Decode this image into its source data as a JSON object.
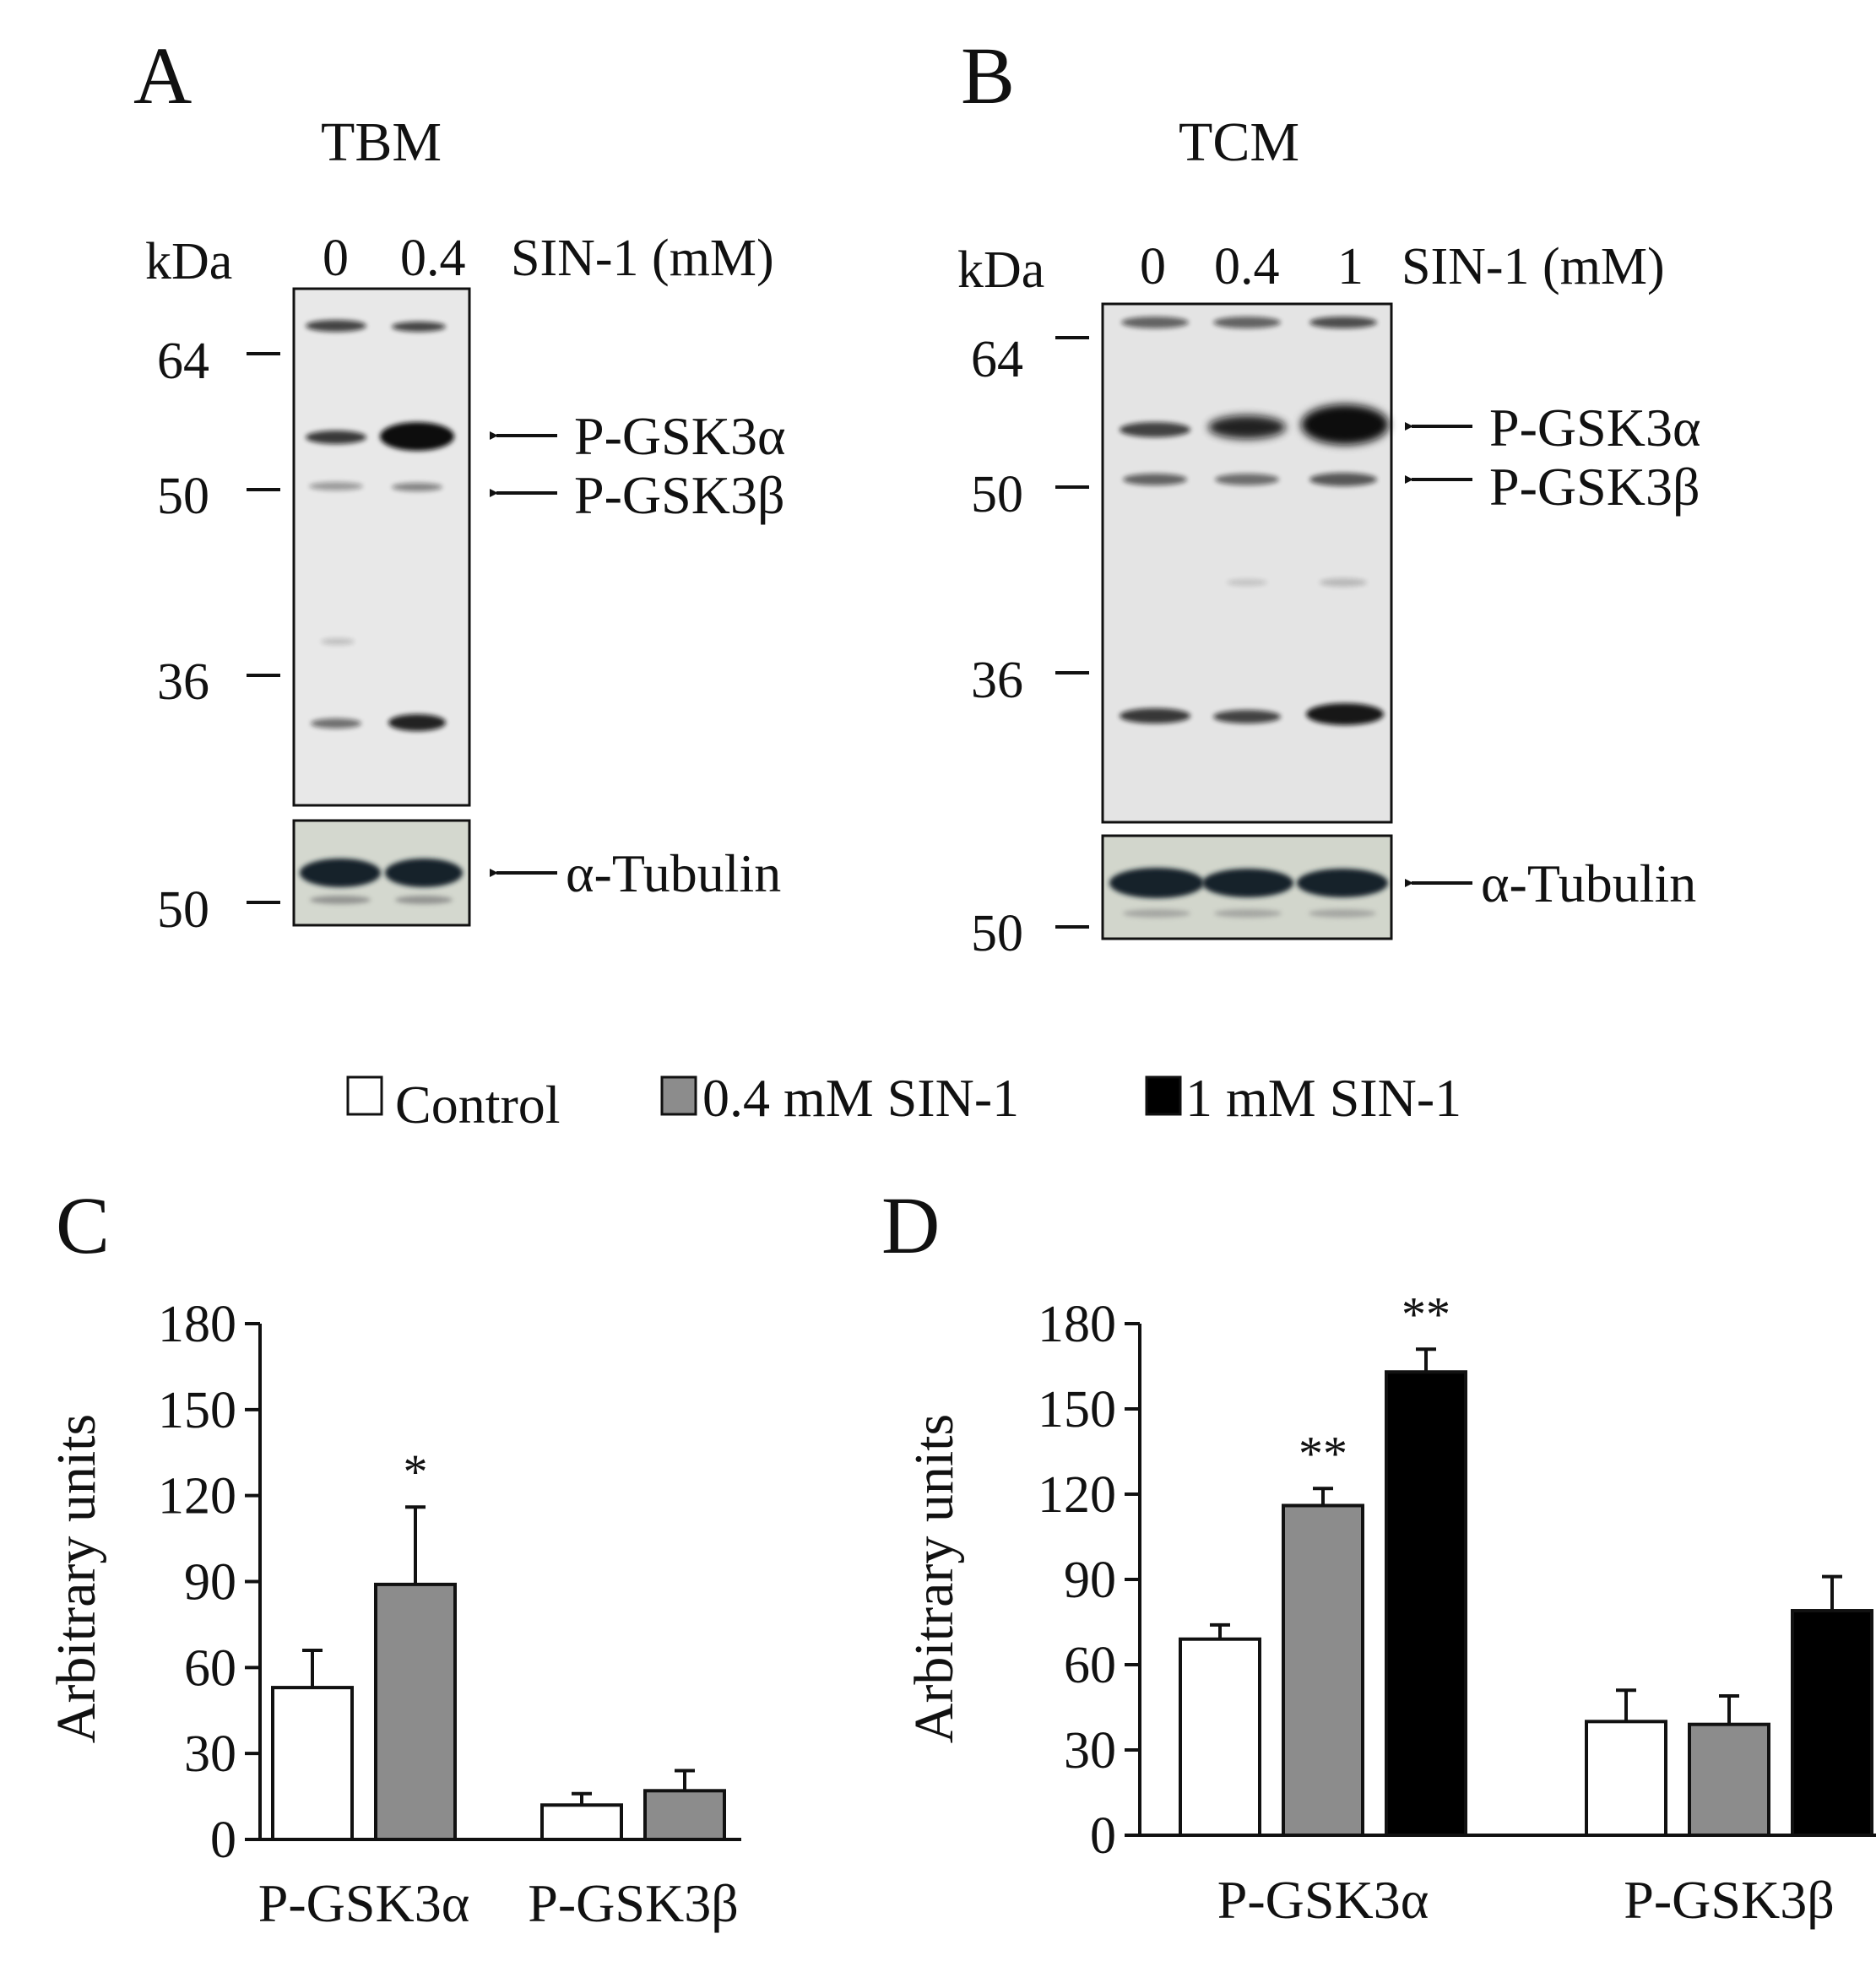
{
  "panels": {
    "A": {
      "letter": "A",
      "title": "TBM",
      "kda_label": "kDa",
      "lanes": [
        "0",
        "0.4"
      ],
      "treatment_label": "SIN-1 (mM)",
      "markers": [
        "64",
        "50",
        "36"
      ],
      "tubulin_marker": "50",
      "band_labels": [
        "P-GSK3α",
        "P-GSK3β"
      ],
      "loading_label": "α-Tubulin"
    },
    "B": {
      "letter": "B",
      "title": "TCM",
      "kda_label": "kDa",
      "lanes": [
        "0",
        "0.4",
        "1"
      ],
      "treatment_label": "SIN-1 (mM)",
      "markers": [
        "64",
        "50",
        "36"
      ],
      "tubulin_marker": "50",
      "band_labels": [
        "P-GSK3α",
        "P-GSK3β"
      ],
      "loading_label": "α-Tubulin"
    },
    "C": {
      "letter": "C"
    },
    "D": {
      "letter": "D"
    }
  },
  "legend": [
    {
      "label": "Control",
      "color": "#ffffff"
    },
    {
      "label": "0.4 mM SIN-1",
      "color": "#8c8c8c"
    },
    {
      "label": "1 mM SIN-1",
      "color": "#000000"
    }
  ],
  "chart_data": [
    {
      "panel": "C",
      "type": "bar",
      "ylabel": "Arbitrary units",
      "ylim": [
        0,
        180
      ],
      "yticks": [
        0,
        30,
        60,
        90,
        120,
        150,
        180
      ],
      "categories": [
        "P-GSK3α",
        "P-GSK3β"
      ],
      "series": [
        {
          "name": "Control",
          "color": "#ffffff",
          "values": [
            53,
            12
          ],
          "errors": [
            13,
            4
          ]
        },
        {
          "name": "0.4 mM SIN-1",
          "color": "#8c8c8c",
          "values": [
            89,
            17
          ],
          "errors": [
            27,
            7
          ]
        }
      ],
      "significance": [
        {
          "category": 0,
          "series": 1,
          "text": "*"
        }
      ]
    },
    {
      "panel": "D",
      "type": "bar",
      "ylabel": "Arbitrary units",
      "ylim": [
        0,
        180
      ],
      "yticks": [
        0,
        30,
        60,
        90,
        120,
        150,
        180
      ],
      "categories": [
        "P-GSK3α",
        "P-GSK3β"
      ],
      "series": [
        {
          "name": "Control",
          "color": "#ffffff",
          "values": [
            69,
            40
          ],
          "errors": [
            5,
            11
          ]
        },
        {
          "name": "0.4 mM SIN-1",
          "color": "#8c8c8c",
          "values": [
            116,
            39
          ],
          "errors": [
            6,
            10
          ]
        },
        {
          "name": "1 mM SIN-1",
          "color": "#000000",
          "values": [
            163,
            79
          ],
          "errors": [
            8,
            12
          ]
        }
      ],
      "significance": [
        {
          "category": 0,
          "series": 1,
          "text": "**"
        },
        {
          "category": 0,
          "series": 2,
          "text": "**"
        }
      ]
    }
  ]
}
